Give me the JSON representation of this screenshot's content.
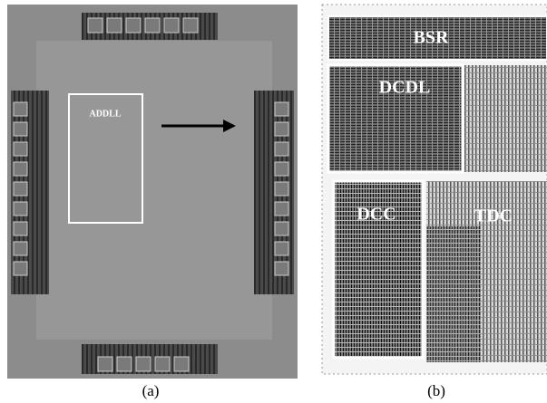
{
  "panel_a": {
    "block_label": "ADDLL",
    "caption": "(a)"
  },
  "panel_b": {
    "blocks": [
      "BSR",
      "DCDL",
      "DCC",
      "TDC"
    ],
    "caption": "(b)"
  }
}
